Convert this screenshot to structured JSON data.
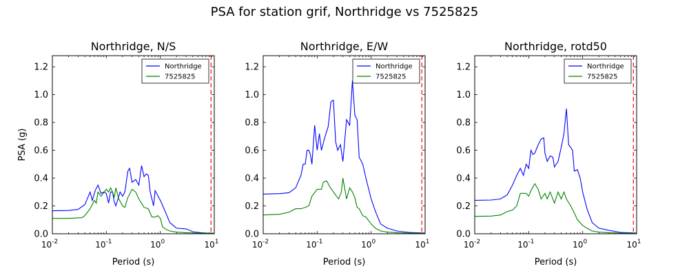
{
  "figure": {
    "suptitle": "PSA for station grif, Northridge vs 7525825"
  },
  "colors": {
    "series_1": "#0000ff",
    "series_2": "#008000",
    "marker_line": "#ff0000"
  },
  "chart_data": [
    {
      "type": "line",
      "title": "Northridge, N/S",
      "xlabel": "Period (s)",
      "ylabel": "PSA (g)",
      "xscale": "log",
      "xlim": [
        0.01,
        10
      ],
      "ylim": [
        0,
        1.28
      ],
      "xticks": [
        {
          "value": 0.01,
          "base": "10",
          "exp": "-2"
        },
        {
          "value": 0.1,
          "base": "10",
          "exp": "-1"
        },
        {
          "value": 1,
          "base": "10",
          "exp": "0"
        },
        {
          "value": 10,
          "base": "10",
          "exp": "1"
        }
      ],
      "yticks": [
        {
          "value": 0.0,
          "label": "0.0"
        },
        {
          "value": 0.2,
          "label": "0.2"
        },
        {
          "value": 0.4,
          "label": "0.4"
        },
        {
          "value": 0.6,
          "label": "0.6"
        },
        {
          "value": 0.8,
          "label": "0.8"
        },
        {
          "value": 1.0,
          "label": "1.0"
        },
        {
          "value": 1.2,
          "label": "1.2"
        }
      ],
      "legend_position": "top-right",
      "vline": 8.7,
      "series": [
        {
          "name": "Northridge",
          "points": [
            [
              0.01,
              0.165
            ],
            [
              0.02,
              0.167
            ],
            [
              0.03,
              0.175
            ],
            [
              0.04,
              0.21
            ],
            [
              0.05,
              0.3
            ],
            [
              0.055,
              0.24
            ],
            [
              0.062,
              0.31
            ],
            [
              0.07,
              0.35
            ],
            [
              0.08,
              0.29
            ],
            [
              0.09,
              0.3
            ],
            [
              0.1,
              0.29
            ],
            [
              0.11,
              0.22
            ],
            [
              0.12,
              0.3
            ],
            [
              0.13,
              0.3
            ],
            [
              0.14,
              0.23
            ],
            [
              0.15,
              0.2
            ],
            [
              0.18,
              0.3
            ],
            [
              0.2,
              0.27
            ],
            [
              0.22,
              0.3
            ],
            [
              0.25,
              0.45
            ],
            [
              0.27,
              0.47
            ],
            [
              0.3,
              0.37
            ],
            [
              0.35,
              0.39
            ],
            [
              0.4,
              0.35
            ],
            [
              0.45,
              0.49
            ],
            [
              0.5,
              0.41
            ],
            [
              0.55,
              0.43
            ],
            [
              0.6,
              0.42
            ],
            [
              0.65,
              0.3
            ],
            [
              0.75,
              0.2
            ],
            [
              0.8,
              0.31
            ],
            [
              1.0,
              0.24
            ],
            [
              1.2,
              0.17
            ],
            [
              1.5,
              0.08
            ],
            [
              2,
              0.04
            ],
            [
              3,
              0.035
            ],
            [
              4,
              0.015
            ],
            [
              5,
              0.01
            ],
            [
              7,
              0.005
            ],
            [
              10,
              0.003
            ]
          ]
        },
        {
          "name": "7525825",
          "points": [
            [
              0.01,
              0.11
            ],
            [
              0.02,
              0.11
            ],
            [
              0.035,
              0.115
            ],
            [
              0.04,
              0.13
            ],
            [
              0.05,
              0.18
            ],
            [
              0.06,
              0.24
            ],
            [
              0.065,
              0.22
            ],
            [
              0.07,
              0.3
            ],
            [
              0.08,
              0.27
            ],
            [
              0.1,
              0.32
            ],
            [
              0.11,
              0.3
            ],
            [
              0.12,
              0.33
            ],
            [
              0.13,
              0.3
            ],
            [
              0.14,
              0.26
            ],
            [
              0.15,
              0.33
            ],
            [
              0.17,
              0.25
            ],
            [
              0.2,
              0.2
            ],
            [
              0.22,
              0.19
            ],
            [
              0.25,
              0.26
            ],
            [
              0.3,
              0.32
            ],
            [
              0.35,
              0.3
            ],
            [
              0.4,
              0.25
            ],
            [
              0.5,
              0.19
            ],
            [
              0.6,
              0.18
            ],
            [
              0.7,
              0.12
            ],
            [
              0.8,
              0.12
            ],
            [
              0.9,
              0.13
            ],
            [
              1.0,
              0.11
            ],
            [
              1.1,
              0.05
            ],
            [
              1.3,
              0.03
            ],
            [
              1.5,
              0.02
            ],
            [
              2,
              0.012
            ],
            [
              3,
              0.008
            ],
            [
              5,
              0.005
            ],
            [
              10,
              0.003
            ]
          ]
        }
      ]
    },
    {
      "type": "line",
      "title": "Northridge, E/W",
      "xlabel": "Period (s)",
      "ylabel": "",
      "xscale": "log",
      "xlim": [
        0.01,
        10
      ],
      "ylim": [
        0,
        1.28
      ],
      "xticks": [
        {
          "value": 0.01,
          "base": "10",
          "exp": "-2"
        },
        {
          "value": 0.1,
          "base": "10",
          "exp": "-1"
        },
        {
          "value": 1,
          "base": "10",
          "exp": "0"
        },
        {
          "value": 10,
          "base": "10",
          "exp": "1"
        }
      ],
      "yticks": [
        {
          "value": 0.0,
          "label": "0.0"
        },
        {
          "value": 0.2,
          "label": "0.2"
        },
        {
          "value": 0.4,
          "label": "0.4"
        },
        {
          "value": 0.6,
          "label": "0.6"
        },
        {
          "value": 0.8,
          "label": "0.8"
        },
        {
          "value": 1.0,
          "label": "1.0"
        },
        {
          "value": 1.2,
          "label": "1.2"
        }
      ],
      "legend_position": "top-right",
      "vline": 8.7,
      "series": [
        {
          "name": "Northridge",
          "points": [
            [
              0.01,
              0.285
            ],
            [
              0.02,
              0.288
            ],
            [
              0.03,
              0.295
            ],
            [
              0.04,
              0.33
            ],
            [
              0.05,
              0.42
            ],
            [
              0.055,
              0.5
            ],
            [
              0.06,
              0.5
            ],
            [
              0.065,
              0.6
            ],
            [
              0.07,
              0.6
            ],
            [
              0.075,
              0.57
            ],
            [
              0.08,
              0.5
            ],
            [
              0.09,
              0.78
            ],
            [
              0.1,
              0.6
            ],
            [
              0.11,
              0.72
            ],
            [
              0.12,
              0.6
            ],
            [
              0.14,
              0.7
            ],
            [
              0.16,
              0.77
            ],
            [
              0.18,
              0.95
            ],
            [
              0.2,
              0.96
            ],
            [
              0.22,
              0.66
            ],
            [
              0.24,
              0.6
            ],
            [
              0.27,
              0.64
            ],
            [
              0.3,
              0.52
            ],
            [
              0.35,
              0.82
            ],
            [
              0.4,
              0.78
            ],
            [
              0.45,
              1.1
            ],
            [
              0.5,
              0.85
            ],
            [
              0.55,
              0.82
            ],
            [
              0.6,
              0.55
            ],
            [
              0.7,
              0.5
            ],
            [
              0.8,
              0.4
            ],
            [
              1.0,
              0.25
            ],
            [
              1.2,
              0.16
            ],
            [
              1.5,
              0.07
            ],
            [
              2,
              0.04
            ],
            [
              3,
              0.02
            ],
            [
              5,
              0.01
            ],
            [
              10,
              0.005
            ]
          ]
        },
        {
          "name": "7525825",
          "points": [
            [
              0.01,
              0.135
            ],
            [
              0.02,
              0.14
            ],
            [
              0.03,
              0.155
            ],
            [
              0.04,
              0.18
            ],
            [
              0.05,
              0.18
            ],
            [
              0.06,
              0.19
            ],
            [
              0.07,
              0.2
            ],
            [
              0.08,
              0.27
            ],
            [
              0.1,
              0.32
            ],
            [
              0.12,
              0.32
            ],
            [
              0.13,
              0.37
            ],
            [
              0.15,
              0.38
            ],
            [
              0.17,
              0.34
            ],
            [
              0.2,
              0.3
            ],
            [
              0.25,
              0.25
            ],
            [
              0.28,
              0.3
            ],
            [
              0.3,
              0.4
            ],
            [
              0.35,
              0.25
            ],
            [
              0.4,
              0.33
            ],
            [
              0.45,
              0.3
            ],
            [
              0.5,
              0.26
            ],
            [
              0.55,
              0.19
            ],
            [
              0.6,
              0.18
            ],
            [
              0.7,
              0.13
            ],
            [
              0.8,
              0.12
            ],
            [
              1.0,
              0.07
            ],
            [
              1.2,
              0.04
            ],
            [
              1.5,
              0.02
            ],
            [
              2,
              0.012
            ],
            [
              3,
              0.008
            ],
            [
              5,
              0.005
            ],
            [
              10,
              0.003
            ]
          ]
        }
      ]
    },
    {
      "type": "line",
      "title": "Northridge, rotd50",
      "xlabel": "Period (s)",
      "ylabel": "",
      "xscale": "log",
      "xlim": [
        0.01,
        10
      ],
      "ylim": [
        0,
        1.28
      ],
      "xticks": [
        {
          "value": 0.01,
          "base": "10",
          "exp": "-2"
        },
        {
          "value": 0.1,
          "base": "10",
          "exp": "-1"
        },
        {
          "value": 1,
          "base": "10",
          "exp": "0"
        },
        {
          "value": 10,
          "base": "10",
          "exp": "1"
        }
      ],
      "yticks": [
        {
          "value": 0.0,
          "label": "0.0"
        },
        {
          "value": 0.2,
          "label": "0.2"
        },
        {
          "value": 0.4,
          "label": "0.4"
        },
        {
          "value": 0.6,
          "label": "0.6"
        },
        {
          "value": 0.8,
          "label": "0.8"
        },
        {
          "value": 1.0,
          "label": "1.0"
        },
        {
          "value": 1.2,
          "label": "1.2"
        }
      ],
      "legend_position": "top-right",
      "vline": 8.7,
      "series": [
        {
          "name": "Northridge",
          "points": [
            [
              0.01,
              0.24
            ],
            [
              0.02,
              0.242
            ],
            [
              0.03,
              0.25
            ],
            [
              0.04,
              0.28
            ],
            [
              0.05,
              0.35
            ],
            [
              0.06,
              0.42
            ],
            [
              0.07,
              0.47
            ],
            [
              0.08,
              0.42
            ],
            [
              0.09,
              0.5
            ],
            [
              0.1,
              0.47
            ],
            [
              0.11,
              0.6
            ],
            [
              0.12,
              0.57
            ],
            [
              0.13,
              0.58
            ],
            [
              0.15,
              0.64
            ],
            [
              0.17,
              0.68
            ],
            [
              0.19,
              0.69
            ],
            [
              0.2,
              0.58
            ],
            [
              0.22,
              0.52
            ],
            [
              0.25,
              0.56
            ],
            [
              0.28,
              0.55
            ],
            [
              0.3,
              0.48
            ],
            [
              0.35,
              0.52
            ],
            [
              0.4,
              0.62
            ],
            [
              0.45,
              0.72
            ],
            [
              0.5,
              0.9
            ],
            [
              0.55,
              0.64
            ],
            [
              0.6,
              0.62
            ],
            [
              0.65,
              0.6
            ],
            [
              0.7,
              0.45
            ],
            [
              0.8,
              0.46
            ],
            [
              0.9,
              0.4
            ],
            [
              1.0,
              0.3
            ],
            [
              1.2,
              0.18
            ],
            [
              1.5,
              0.08
            ],
            [
              2,
              0.04
            ],
            [
              3,
              0.025
            ],
            [
              5,
              0.01
            ],
            [
              10,
              0.005
            ]
          ]
        },
        {
          "name": "7525825",
          "points": [
            [
              0.01,
              0.125
            ],
            [
              0.02,
              0.127
            ],
            [
              0.03,
              0.135
            ],
            [
              0.04,
              0.16
            ],
            [
              0.05,
              0.17
            ],
            [
              0.06,
              0.2
            ],
            [
              0.07,
              0.29
            ],
            [
              0.08,
              0.29
            ],
            [
              0.09,
              0.29
            ],
            [
              0.1,
              0.27
            ],
            [
              0.11,
              0.31
            ],
            [
              0.13,
              0.36
            ],
            [
              0.15,
              0.32
            ],
            [
              0.17,
              0.25
            ],
            [
              0.2,
              0.29
            ],
            [
              0.22,
              0.25
            ],
            [
              0.25,
              0.3
            ],
            [
              0.3,
              0.22
            ],
            [
              0.35,
              0.3
            ],
            [
              0.4,
              0.25
            ],
            [
              0.45,
              0.3
            ],
            [
              0.5,
              0.25
            ],
            [
              0.6,
              0.2
            ],
            [
              0.7,
              0.15
            ],
            [
              0.8,
              0.1
            ],
            [
              1.0,
              0.06
            ],
            [
              1.2,
              0.04
            ],
            [
              1.5,
              0.02
            ],
            [
              2,
              0.012
            ],
            [
              3,
              0.008
            ],
            [
              5,
              0.005
            ],
            [
              10,
              0.003
            ]
          ]
        }
      ]
    }
  ]
}
